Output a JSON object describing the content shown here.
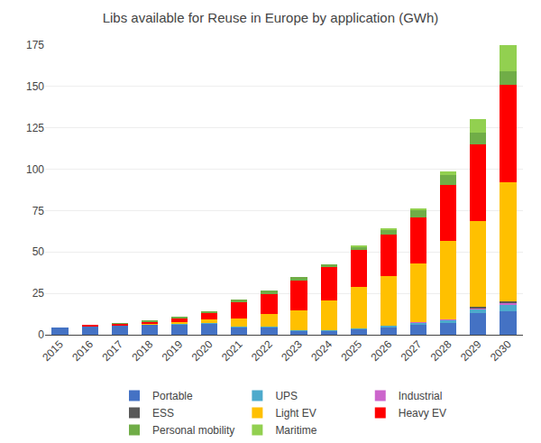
{
  "chart_data": {
    "type": "bar",
    "stacked": true,
    "title": "Libs available for Reuse in Europe by application (GWh)",
    "categories": [
      "2015",
      "2016",
      "2017",
      "2018",
      "2019",
      "2020",
      "2021",
      "2022",
      "2023",
      "2024",
      "2025",
      "2026",
      "2027",
      "2028",
      "2029",
      "2030"
    ],
    "series": [
      {
        "name": "Portable",
        "color": "#4472C4",
        "values": [
          4.5,
          5.0,
          5.5,
          6.0,
          6.5,
          7.0,
          4.5,
          4.5,
          2.5,
          2.5,
          3.5,
          4.5,
          6.0,
          7.0,
          13.0,
          14.0
        ]
      },
      {
        "name": "UPS",
        "color": "#4DAACC",
        "values": [
          0.0,
          0.0,
          0.0,
          0.0,
          0.3,
          0.3,
          0.3,
          0.3,
          0.3,
          0.3,
          0.5,
          1.0,
          1.5,
          2.0,
          2.5,
          4.0
        ]
      },
      {
        "name": "Industrial",
        "color": "#CC66CC",
        "values": [
          0.0,
          0.0,
          0.0,
          0.0,
          0.0,
          0.0,
          0.0,
          0.0,
          0.0,
          0.0,
          0.0,
          0.0,
          0.2,
          0.3,
          0.8,
          1.2
        ]
      },
      {
        "name": "ESS",
        "color": "#595959",
        "values": [
          0.0,
          0.0,
          0.0,
          0.0,
          0.0,
          0.0,
          0.0,
          0.0,
          0.0,
          0.0,
          0.0,
          0.0,
          0.1,
          0.2,
          0.5,
          0.8
        ]
      },
      {
        "name": "Light EV",
        "color": "#FFC000",
        "values": [
          0.0,
          0.2,
          0.3,
          0.5,
          1.0,
          2.0,
          5.0,
          8.0,
          12.0,
          18.0,
          25.0,
          30.0,
          35.0,
          47.0,
          52.0,
          72.0
        ]
      },
      {
        "name": "Heavy EV",
        "color": "#FF0000",
        "values": [
          0.0,
          0.3,
          0.8,
          1.5,
          2.5,
          4.0,
          10.0,
          12.0,
          18.0,
          20.0,
          22.0,
          25.0,
          28.0,
          34.0,
          46.0,
          59.0
        ]
      },
      {
        "name": "Personal mobility",
        "color": "#70AD47",
        "values": [
          0.0,
          0.0,
          0.2,
          0.5,
          0.7,
          1.0,
          1.5,
          2.0,
          2.0,
          1.5,
          2.0,
          3.0,
          4.5,
          6.0,
          7.5,
          8.0
        ]
      },
      {
        "name": "Maritime",
        "color": "#92D050",
        "values": [
          0.0,
          0.0,
          0.0,
          0.0,
          0.0,
          0.0,
          0.0,
          0.0,
          0.0,
          0.0,
          0.5,
          0.5,
          1.0,
          2.0,
          8.0,
          16.0
        ]
      }
    ],
    "ylim": [
      0,
      175
    ],
    "yticks": [
      0,
      25,
      50,
      75,
      100,
      125,
      150,
      175
    ],
    "grid": true,
    "legend": "bottom"
  }
}
